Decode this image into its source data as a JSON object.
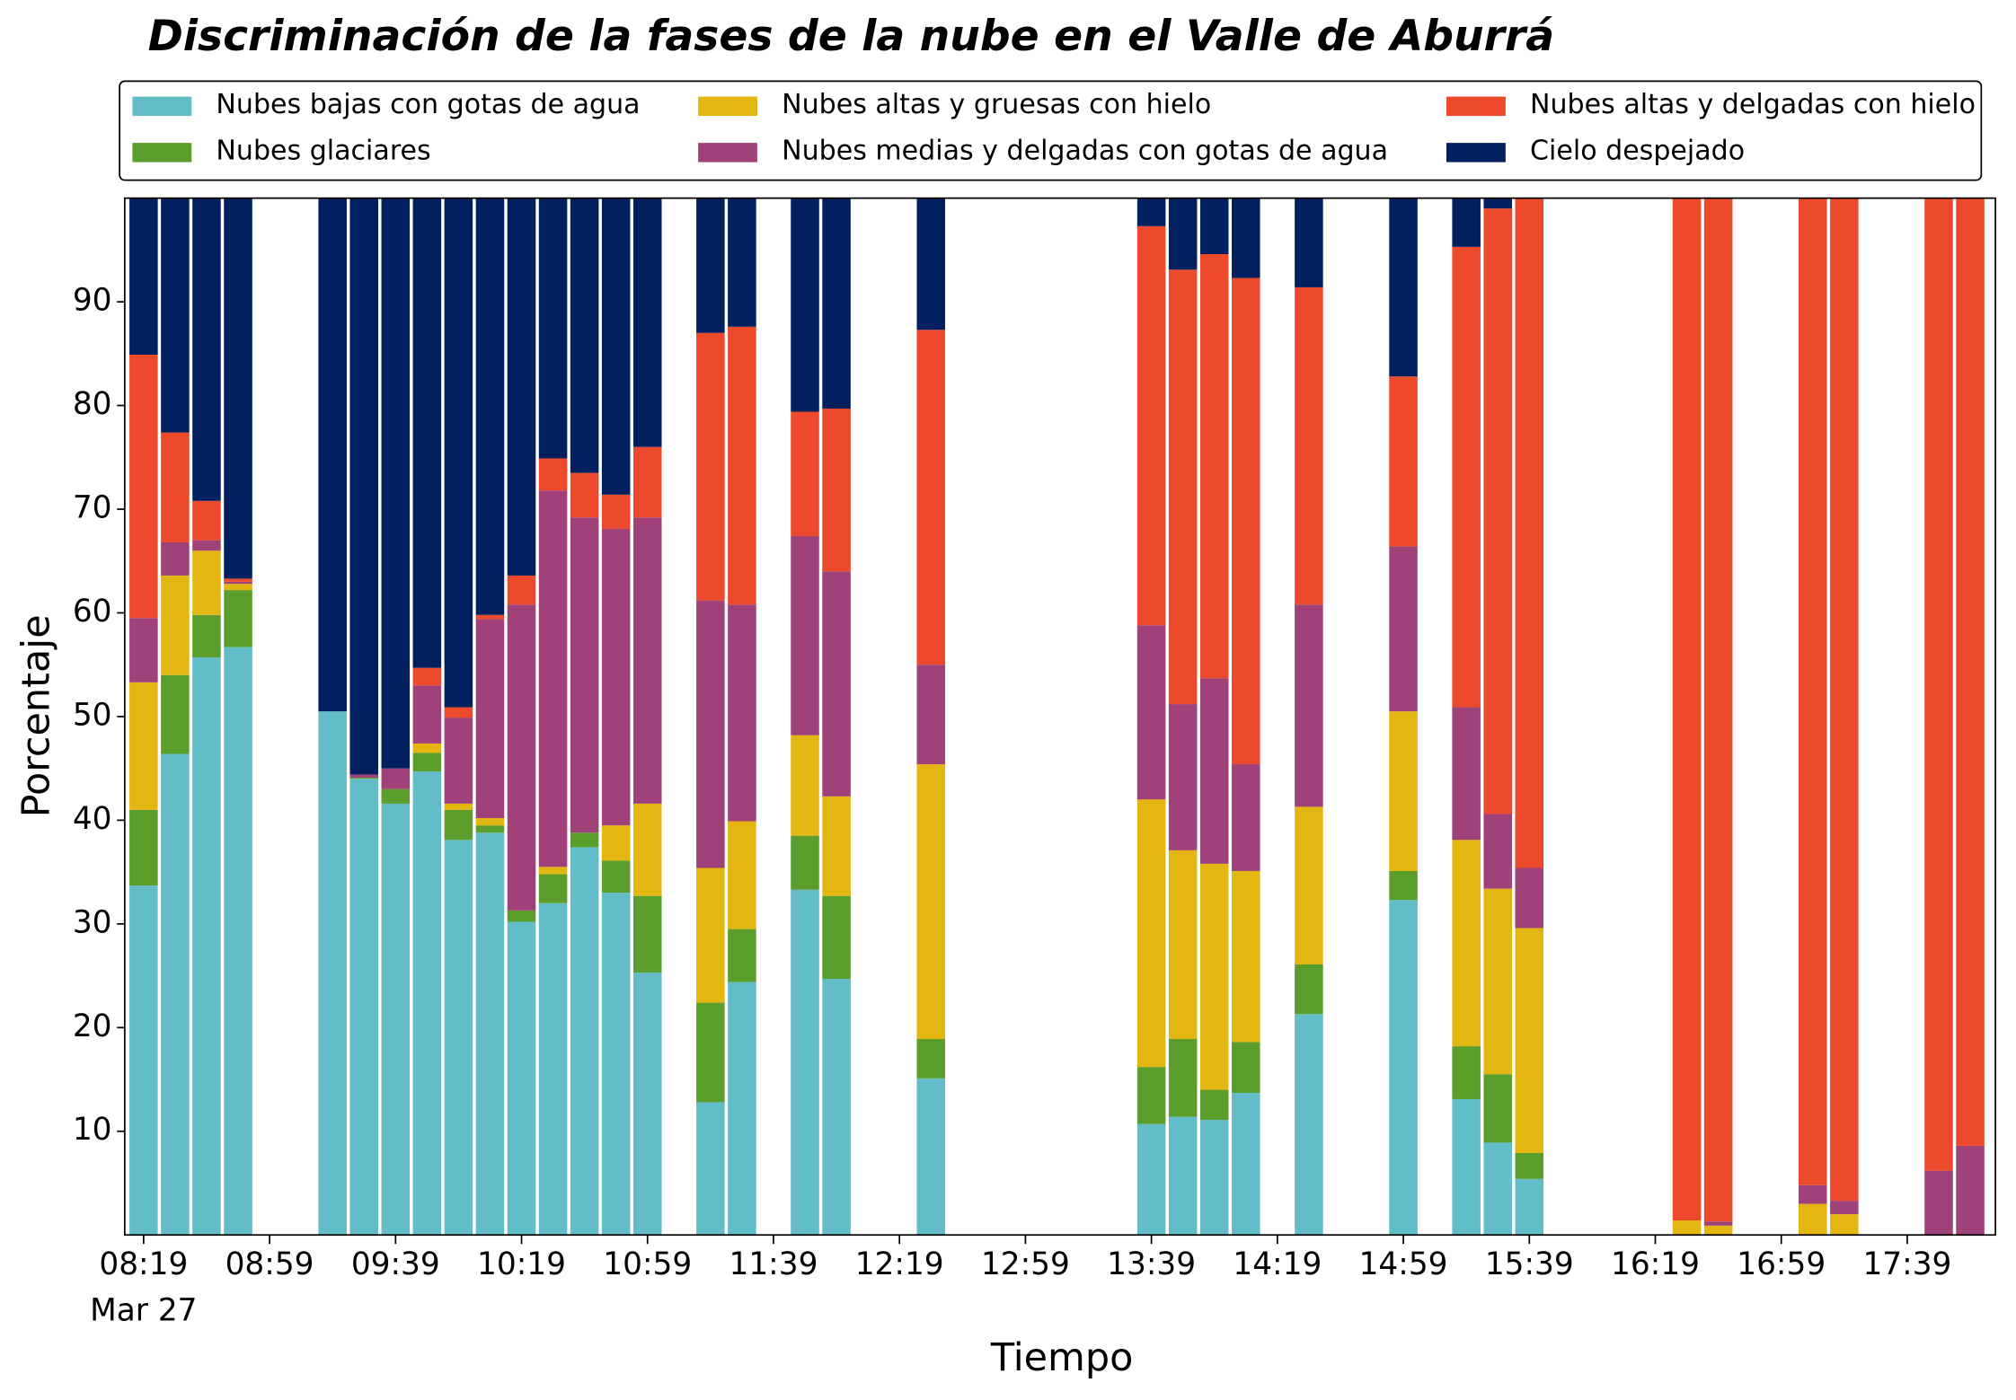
{
  "chart_data": {
    "type": "stacked_bar",
    "title": "Discriminación de la fases de la nube en el Valle de Aburrá",
    "xlabel": "Tiempo",
    "ylabel": "Porcentaje",
    "date": "Mar 27",
    "x": [
      "08:19",
      "08:29",
      "08:39",
      "08:49",
      "09:19",
      "09:29",
      "09:39",
      "09:49",
      "09:59",
      "10:09",
      "10:19",
      "10:29",
      "10:39",
      "10:49",
      "10:59",
      "11:19",
      "11:29",
      "11:49",
      "11:59",
      "12:29",
      "13:39",
      "13:49",
      "13:59",
      "14:09",
      "14:29",
      "14:59",
      "15:19",
      "15:29",
      "15:39",
      "16:29",
      "16:39",
      "17:09",
      "17:19",
      "17:49",
      "17:59"
    ],
    "xlim": [
      "08:13",
      "18:07"
    ],
    "xticks": [
      "08:19",
      "08:59",
      "09:39",
      "10:19",
      "10:59",
      "11:39",
      "12:19",
      "12:59",
      "13:39",
      "14:19",
      "14:59",
      "15:39",
      "16:19",
      "16:59",
      "17:39"
    ],
    "ylim": [
      0,
      100
    ],
    "yticks": [
      10,
      20,
      30,
      40,
      50,
      60,
      70,
      80,
      90
    ],
    "legend": "top",
    "series": [
      {
        "name": "Nubes bajas con gotas de agua",
        "color": "#63bdc9",
        "values": [
          33.7,
          46.4,
          55.7,
          56.7,
          50.5,
          44,
          41.6,
          44.7,
          38.1,
          38.8,
          30.2,
          32,
          37.4,
          33,
          25.3,
          12.8,
          24.4,
          33.3,
          24.7,
          15.1,
          10.7,
          11.4,
          11.1,
          13.7,
          21.3,
          32.3,
          13.1,
          8.9,
          5.4,
          0,
          0,
          0,
          0,
          0,
          0
        ]
      },
      {
        "name": "Nubes glaciares",
        "color": "#5c9e2b",
        "values": [
          7.3,
          7.6,
          4.1,
          5.5,
          0,
          0.1,
          1.4,
          1.8,
          2.9,
          0.7,
          1.1,
          2.8,
          1.4,
          3.1,
          7.4,
          9.6,
          5.1,
          5.2,
          8,
          3.8,
          5.5,
          7.5,
          2.9,
          4.9,
          4.8,
          2.8,
          5.1,
          6.6,
          2.5,
          0,
          0,
          0,
          0,
          0,
          0
        ]
      },
      {
        "name": "Nubes altas y gruesas con hielo",
        "color": "#e3b611",
        "values": [
          12.3,
          9.6,
          6.2,
          0.6,
          0,
          0,
          0,
          0.9,
          0.6,
          0.7,
          0,
          0.7,
          0,
          3.4,
          8.9,
          13,
          10.4,
          9.7,
          9.6,
          26.5,
          25.8,
          18.2,
          21.8,
          16.5,
          15.2,
          15.4,
          19.9,
          17.9,
          21.7,
          1.4,
          0.9,
          3,
          2,
          0,
          0
        ]
      },
      {
        "name": "Nubes medias y delgadas con gotas de agua",
        "color": "#a0417a",
        "values": [
          6.2,
          3.2,
          1,
          0.2,
          0,
          0.3,
          2,
          5.6,
          8.3,
          19.2,
          29.5,
          36.3,
          30.4,
          28.6,
          27.6,
          25.8,
          20.9,
          19.2,
          21.7,
          9.6,
          16.8,
          14.1,
          17.9,
          10.3,
          19.5,
          15.9,
          12.8,
          7.2,
          5.8,
          0,
          0.4,
          1.8,
          1.3,
          6.2,
          8.6
        ]
      },
      {
        "name": "Nubes altas y delgadas con hielo",
        "color": "#ed4a2b",
        "values": [
          25.4,
          10.6,
          3.8,
          0.3,
          0,
          0,
          0,
          1.7,
          1,
          0.4,
          2.8,
          3.1,
          4.3,
          3.3,
          6.8,
          25.8,
          26.8,
          12,
          15.7,
          32.3,
          38.5,
          41.9,
          40.9,
          46.9,
          30.6,
          16.4,
          44.4,
          58.4,
          64.6,
          98.6,
          98.7,
          95.2,
          96.7,
          93.8,
          91.4
        ]
      },
      {
        "name": "Cielo despejado",
        "color": "#021f5f",
        "values": [
          15.1,
          22.6,
          29.2,
          36.7,
          49.5,
          55.6,
          55,
          45.3,
          49.1,
          40.2,
          36.4,
          25.1,
          26.5,
          28.6,
          24,
          13,
          12.4,
          20.6,
          20.3,
          12.7,
          2.7,
          6.9,
          5.4,
          7.7,
          8.6,
          17.2,
          4.7,
          1,
          0,
          0,
          0,
          0,
          0,
          0,
          0
        ]
      }
    ]
  }
}
